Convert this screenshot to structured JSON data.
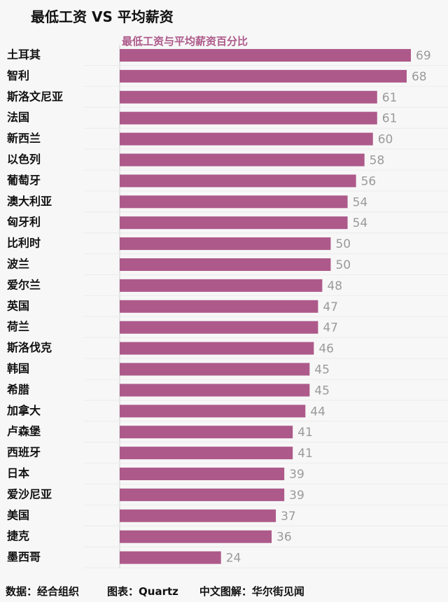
{
  "chart_data": {
    "type": "bar",
    "orientation": "horizontal",
    "title": "最低工资 VS 平均薪资",
    "subtitle": "最低工资与平均薪资百分比",
    "categories": [
      "土耳其",
      "智利",
      "斯洛文尼亚",
      "法国",
      "新西兰",
      "以色列",
      "葡萄牙",
      "澳大利亚",
      "匈牙利",
      "比利时",
      "波兰",
      "爱尔兰",
      "英国",
      "荷兰",
      "斯洛伐克",
      "韩国",
      "希腊",
      "加拿大",
      "卢森堡",
      "西班牙",
      "日本",
      "爱沙尼亚",
      "美国",
      "捷克",
      "墨西哥"
    ],
    "values": [
      69,
      68,
      61,
      61,
      60,
      58,
      56,
      54,
      54,
      50,
      50,
      48,
      47,
      47,
      46,
      45,
      45,
      44,
      41,
      41,
      39,
      39,
      37,
      36,
      24
    ],
    "xlim": [
      0,
      72
    ],
    "bar_color": "#ad5a8a",
    "value_label_color": "#9a9a9a",
    "grid": false
  },
  "footer": {
    "source": "数据：经合组织",
    "chart_by": "图表：Quartz",
    "translation": "中文图解：华尔街见闻"
  }
}
